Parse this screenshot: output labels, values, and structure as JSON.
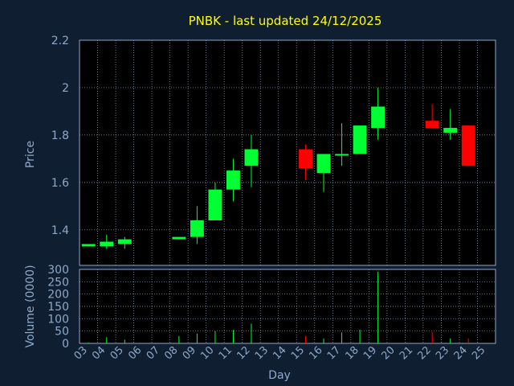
{
  "chart_data": [
    {
      "type": "candlestick",
      "title": "PNBK - last updated 24/12/2025",
      "ylabel": "Price",
      "ylim": [
        1.25,
        2.2
      ],
      "yticks": [
        "1.4",
        "1.6",
        "1.8",
        "2",
        "2.2"
      ],
      "grid": true,
      "x": [
        "03",
        "04",
        "05",
        "06",
        "07",
        "08",
        "09",
        "10",
        "11",
        "12",
        "13",
        "14",
        "15",
        "16",
        "17",
        "18",
        "19",
        "20",
        "21",
        "22",
        "23",
        "24",
        "25"
      ],
      "candles": [
        {
          "x": "03",
          "open": 1.33,
          "high": 1.34,
          "low": 1.33,
          "close": 1.34
        },
        {
          "x": "04",
          "open": 1.33,
          "high": 1.38,
          "low": 1.32,
          "close": 1.35
        },
        {
          "x": "05",
          "open": 1.34,
          "high": 1.37,
          "low": 1.32,
          "close": 1.36
        },
        {
          "x": "08",
          "open": 1.36,
          "high": 1.37,
          "low": 1.36,
          "close": 1.37
        },
        {
          "x": "09",
          "open": 1.37,
          "high": 1.5,
          "low": 1.34,
          "close": 1.44
        },
        {
          "x": "10",
          "open": 1.44,
          "high": 1.6,
          "low": 1.44,
          "close": 1.57
        },
        {
          "x": "11",
          "open": 1.57,
          "high": 1.7,
          "low": 1.52,
          "close": 1.65
        },
        {
          "x": "12",
          "open": 1.67,
          "high": 1.8,
          "low": 1.58,
          "close": 1.74
        },
        {
          "x": "15",
          "open": 1.74,
          "high": 1.76,
          "low": 1.61,
          "close": 1.66
        },
        {
          "x": "16",
          "open": 1.64,
          "high": 1.72,
          "low": 1.56,
          "close": 1.72
        },
        {
          "x": "17",
          "open": 1.72,
          "high": 1.85,
          "low": 1.67,
          "close": 1.72
        },
        {
          "x": "18",
          "open": 1.72,
          "high": 1.84,
          "low": 1.72,
          "close": 1.84
        },
        {
          "x": "19",
          "open": 1.83,
          "high": 2.0,
          "low": 1.78,
          "close": 1.92
        },
        {
          "x": "22",
          "open": 1.86,
          "high": 1.93,
          "low": 1.83,
          "close": 1.83
        },
        {
          "x": "23",
          "open": 1.81,
          "high": 1.91,
          "low": 1.78,
          "close": 1.83
        },
        {
          "x": "24",
          "open": 1.84,
          "high": 1.84,
          "low": 1.67,
          "close": 1.67
        }
      ]
    },
    {
      "type": "bar",
      "ylabel": "Volume (0000)",
      "xlabel": "Day",
      "ylim": [
        0,
        300
      ],
      "yticks": [
        "0",
        "50",
        "100",
        "150",
        "200",
        "250",
        "300"
      ],
      "grid": true,
      "categories": [
        "03",
        "04",
        "05",
        "06",
        "07",
        "08",
        "09",
        "10",
        "11",
        "12",
        "13",
        "14",
        "15",
        "16",
        "17",
        "18",
        "19",
        "20",
        "21",
        "22",
        "23",
        "24",
        "25"
      ],
      "values": [
        3,
        25,
        15,
        0,
        0,
        30,
        40,
        50,
        55,
        80,
        0,
        0,
        30,
        20,
        45,
        55,
        290,
        0,
        0,
        45,
        20,
        20,
        0
      ],
      "colors": [
        "up",
        "up",
        "up",
        "up",
        "up",
        "up",
        "up",
        "up",
        "up",
        "up",
        "up",
        "up",
        "down",
        "up",
        "up",
        "up",
        "up",
        "up",
        "up",
        "down",
        "up",
        "down",
        "up"
      ]
    }
  ],
  "colors": {
    "background": "#0f1e30",
    "plot_background": "#000000",
    "grid": "#8fa9c8",
    "up": "#00ff33",
    "down": "#ff0000",
    "title": "#ffff00",
    "text": "#8fa9c8"
  }
}
